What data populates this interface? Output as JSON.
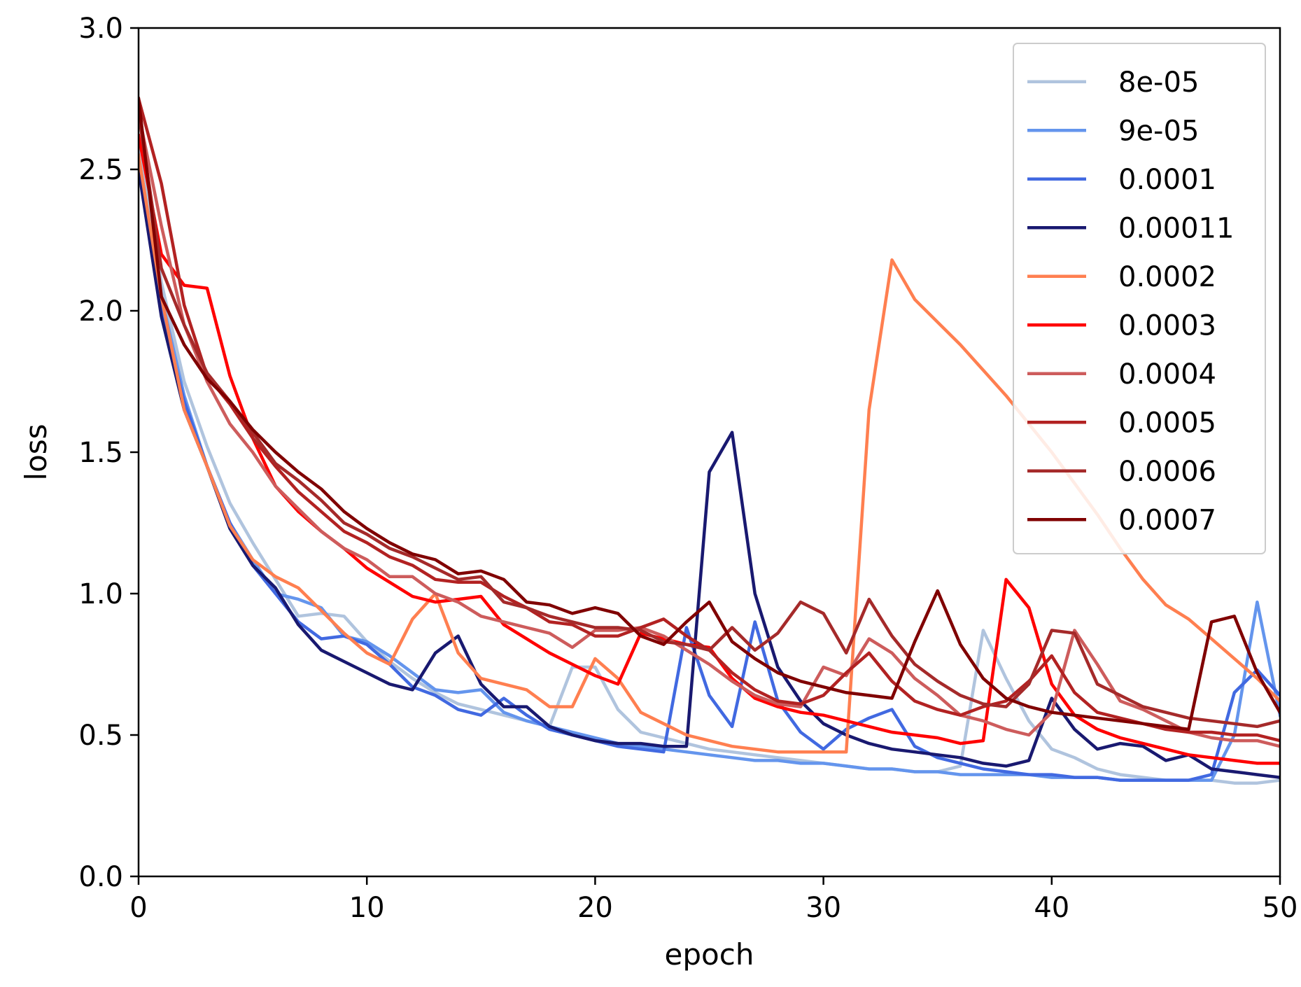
{
  "chart_data": {
    "type": "line",
    "title": "",
    "xlabel": "epoch",
    "ylabel": "loss",
    "xlim": [
      0,
      50
    ],
    "ylim": [
      0,
      3
    ],
    "xticks": [
      0,
      10,
      20,
      30,
      40,
      50
    ],
    "yticks": [
      0.0,
      0.5,
      1.0,
      1.5,
      2.0,
      2.5,
      3.0
    ],
    "xtick_labels": [
      "0",
      "10",
      "20",
      "30",
      "40",
      "50"
    ],
    "ytick_labels": [
      "0.0",
      "0.5",
      "1.0",
      "1.5",
      "2.0",
      "2.5",
      "3.0"
    ],
    "legend_position": "top-right",
    "x": [
      0,
      1,
      2,
      3,
      4,
      5,
      6,
      7,
      8,
      9,
      10,
      11,
      12,
      13,
      14,
      15,
      16,
      17,
      18,
      19,
      20,
      21,
      22,
      23,
      24,
      25,
      26,
      27,
      28,
      29,
      30,
      31,
      32,
      33,
      34,
      35,
      36,
      37,
      38,
      39,
      40,
      41,
      42,
      43,
      44,
      45,
      46,
      47,
      48,
      49,
      50
    ],
    "series": [
      {
        "name": "8e-05",
        "color": "#b0c4de",
        "values": [
          2.6,
          2.1,
          1.75,
          1.52,
          1.32,
          1.18,
          1.05,
          0.92,
          0.93,
          0.92,
          0.83,
          0.76,
          0.7,
          0.65,
          0.61,
          0.59,
          0.57,
          0.55,
          0.53,
          0.74,
          0.74,
          0.59,
          0.51,
          0.49,
          0.47,
          0.45,
          0.44,
          0.43,
          0.42,
          0.41,
          0.4,
          0.39,
          0.38,
          0.38,
          0.37,
          0.37,
          0.39,
          0.87,
          0.7,
          0.55,
          0.45,
          0.42,
          0.38,
          0.36,
          0.35,
          0.34,
          0.34,
          0.34,
          0.33,
          0.33,
          0.34
        ]
      },
      {
        "name": "9e-05",
        "color": "#6495ed",
        "values": [
          2.55,
          2.05,
          1.7,
          1.45,
          1.25,
          1.12,
          1.0,
          0.98,
          0.95,
          0.85,
          0.83,
          0.78,
          0.72,
          0.66,
          0.65,
          0.66,
          0.58,
          0.55,
          0.53,
          0.51,
          0.49,
          0.47,
          0.46,
          0.45,
          0.44,
          0.43,
          0.42,
          0.41,
          0.41,
          0.4,
          0.4,
          0.39,
          0.38,
          0.38,
          0.37,
          0.37,
          0.36,
          0.36,
          0.36,
          0.36,
          0.35,
          0.35,
          0.35,
          0.34,
          0.34,
          0.34,
          0.34,
          0.34,
          0.5,
          0.97,
          0.57
        ]
      },
      {
        "name": "0.0001",
        "color": "#4169e1",
        "values": [
          2.5,
          2.0,
          1.68,
          1.45,
          1.25,
          1.1,
          1.0,
          0.9,
          0.84,
          0.85,
          0.82,
          0.75,
          0.67,
          0.64,
          0.59,
          0.57,
          0.63,
          0.57,
          0.52,
          0.5,
          0.48,
          0.46,
          0.45,
          0.44,
          0.88,
          0.64,
          0.53,
          0.9,
          0.62,
          0.51,
          0.45,
          0.52,
          0.56,
          0.59,
          0.46,
          0.42,
          0.4,
          0.38,
          0.37,
          0.36,
          0.36,
          0.35,
          0.35,
          0.34,
          0.34,
          0.34,
          0.34,
          0.36,
          0.65,
          0.73,
          0.64
        ]
      },
      {
        "name": "0.00011",
        "color": "#191970",
        "values": [
          2.5,
          1.98,
          1.65,
          1.45,
          1.23,
          1.1,
          1.02,
          0.89,
          0.8,
          0.76,
          0.72,
          0.68,
          0.66,
          0.79,
          0.85,
          0.68,
          0.6,
          0.6,
          0.53,
          0.5,
          0.48,
          0.47,
          0.47,
          0.46,
          0.46,
          1.43,
          1.57,
          1.0,
          0.74,
          0.62,
          0.54,
          0.5,
          0.47,
          0.45,
          0.44,
          0.43,
          0.42,
          0.4,
          0.39,
          0.41,
          0.63,
          0.52,
          0.45,
          0.47,
          0.46,
          0.41,
          0.43,
          0.38,
          0.37,
          0.36,
          0.35
        ]
      },
      {
        "name": "0.0002",
        "color": "#ff7f50",
        "values": [
          2.55,
          2.05,
          1.65,
          1.45,
          1.24,
          1.12,
          1.06,
          1.02,
          0.94,
          0.86,
          0.79,
          0.75,
          0.91,
          1.0,
          0.79,
          0.7,
          0.68,
          0.66,
          0.6,
          0.6,
          0.77,
          0.7,
          0.58,
          0.54,
          0.5,
          0.48,
          0.46,
          0.45,
          0.44,
          0.44,
          0.44,
          0.44,
          1.65,
          2.18,
          2.04,
          1.96,
          1.88,
          1.79,
          1.7,
          1.6,
          1.5,
          1.39,
          1.28,
          1.16,
          1.05,
          0.96,
          0.91,
          0.84,
          0.77,
          0.7,
          0.62
        ]
      },
      {
        "name": "0.0003",
        "color": "#ff0000",
        "values": [
          2.62,
          2.2,
          2.09,
          2.08,
          1.77,
          1.55,
          1.38,
          1.29,
          1.22,
          1.16,
          1.09,
          1.04,
          0.99,
          0.97,
          0.98,
          0.99,
          0.89,
          0.84,
          0.79,
          0.75,
          0.71,
          0.68,
          0.86,
          0.84,
          0.82,
          0.81,
          0.7,
          0.63,
          0.6,
          0.58,
          0.57,
          0.55,
          0.53,
          0.51,
          0.5,
          0.49,
          0.47,
          0.48,
          1.05,
          0.95,
          0.68,
          0.57,
          0.52,
          0.49,
          0.47,
          0.45,
          0.43,
          0.42,
          0.41,
          0.4,
          0.4
        ]
      },
      {
        "name": "0.0004",
        "color": "#cd5c5c",
        "values": [
          2.7,
          2.3,
          1.95,
          1.75,
          1.6,
          1.5,
          1.38,
          1.3,
          1.22,
          1.16,
          1.12,
          1.06,
          1.06,
          1.0,
          0.97,
          0.92,
          0.9,
          0.88,
          0.86,
          0.81,
          0.87,
          0.87,
          0.88,
          0.85,
          0.8,
          0.75,
          0.69,
          0.64,
          0.61,
          0.6,
          0.74,
          0.71,
          0.84,
          0.79,
          0.7,
          0.64,
          0.57,
          0.55,
          0.52,
          0.5,
          0.58,
          0.87,
          0.75,
          0.62,
          0.59,
          0.55,
          0.51,
          0.49,
          0.48,
          0.48,
          0.46
        ]
      },
      {
        "name": "0.0005",
        "color": "#b22222",
        "values": [
          2.75,
          2.45,
          2.02,
          1.77,
          1.67,
          1.55,
          1.45,
          1.36,
          1.29,
          1.22,
          1.18,
          1.13,
          1.1,
          1.05,
          1.04,
          1.04,
          0.99,
          0.95,
          0.9,
          0.89,
          0.85,
          0.85,
          0.88,
          0.91,
          0.85,
          0.8,
          0.72,
          0.66,
          0.62,
          0.61,
          0.64,
          0.72,
          0.79,
          0.69,
          0.62,
          0.59,
          0.57,
          0.6,
          0.62,
          0.69,
          0.78,
          0.65,
          0.58,
          0.56,
          0.54,
          0.52,
          0.51,
          0.51,
          0.5,
          0.5,
          0.48
        ]
      },
      {
        "name": "0.0006",
        "color": "#a52a2a",
        "values": [
          2.7,
          2.15,
          1.95,
          1.78,
          1.68,
          1.57,
          1.46,
          1.4,
          1.33,
          1.25,
          1.21,
          1.16,
          1.13,
          1.09,
          1.05,
          1.06,
          0.97,
          0.95,
          0.92,
          0.9,
          0.88,
          0.88,
          0.87,
          0.83,
          0.82,
          0.8,
          0.88,
          0.8,
          0.86,
          0.97,
          0.93,
          0.79,
          0.98,
          0.85,
          0.75,
          0.69,
          0.64,
          0.61,
          0.6,
          0.68,
          0.87,
          0.86,
          0.68,
          0.64,
          0.6,
          0.58,
          0.56,
          0.55,
          0.54,
          0.53,
          0.55
        ]
      },
      {
        "name": "0.0007",
        "color": "#800000",
        "values": [
          2.75,
          2.05,
          1.88,
          1.76,
          1.68,
          1.58,
          1.5,
          1.43,
          1.37,
          1.29,
          1.23,
          1.18,
          1.14,
          1.12,
          1.07,
          1.08,
          1.05,
          0.97,
          0.96,
          0.93,
          0.95,
          0.93,
          0.85,
          0.82,
          0.9,
          0.97,
          0.83,
          0.77,
          0.72,
          0.69,
          0.67,
          0.65,
          0.64,
          0.63,
          0.83,
          1.01,
          0.82,
          0.7,
          0.63,
          0.6,
          0.58,
          0.57,
          0.56,
          0.55,
          0.54,
          0.53,
          0.52,
          0.9,
          0.92,
          0.72,
          0.58
        ]
      }
    ]
  }
}
